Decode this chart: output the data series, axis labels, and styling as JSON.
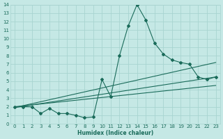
{
  "xlabel": "Humidex (Indice chaleur)",
  "bg_color": "#c5e8e5",
  "grid_color": "#a8d4d0",
  "line_color": "#1a6b5a",
  "xlim": [
    -0.5,
    23.5
  ],
  "ylim": [
    0,
    14
  ],
  "xticks": [
    0,
    1,
    2,
    3,
    4,
    5,
    6,
    7,
    8,
    9,
    10,
    11,
    12,
    13,
    14,
    15,
    16,
    17,
    18,
    19,
    20,
    21,
    22,
    23
  ],
  "yticks": [
    0,
    1,
    2,
    3,
    4,
    5,
    6,
    7,
    8,
    9,
    10,
    11,
    12,
    13,
    14
  ],
  "series1_x": [
    0,
    1,
    2,
    3,
    4,
    5,
    6,
    7,
    8,
    9,
    10,
    11,
    12,
    13,
    14,
    15,
    16,
    17,
    18,
    19,
    20,
    21,
    22,
    23
  ],
  "series1_y": [
    2.0,
    2.0,
    2.0,
    1.2,
    1.8,
    1.2,
    1.2,
    1.0,
    0.7,
    0.8,
    5.2,
    3.2,
    8.0,
    11.5,
    14.0,
    12.2,
    9.5,
    8.2,
    7.5,
    7.2,
    7.0,
    5.5,
    5.2,
    5.5
  ],
  "line1_x": [
    0,
    23
  ],
  "line1_y": [
    1.9,
    7.2
  ],
  "line2_x": [
    0,
    23
  ],
  "line2_y": [
    1.9,
    5.5
  ],
  "line3_x": [
    0,
    23
  ],
  "line3_y": [
    2.0,
    4.5
  ],
  "marker": "D",
  "marker_size": 2.0,
  "line_width": 0.8,
  "tick_fontsize": 5.0,
  "xlabel_fontsize": 5.5
}
